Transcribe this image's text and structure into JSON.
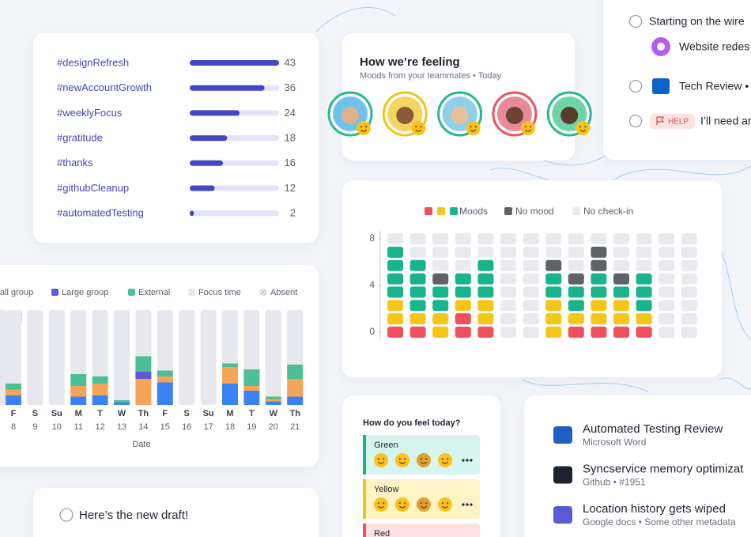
{
  "hashtags": {
    "tags": [
      "#designRefresh",
      "#newAccountGrowth",
      "#weeklyFocus",
      "#gratitude",
      "#thanks",
      "#githubCleanup",
      "#automatedTesting"
    ],
    "counts": [
      43,
      36,
      24,
      18,
      16,
      12,
      2
    ]
  },
  "feeling": {
    "title": "How we’re feeling",
    "subtitle": "Moods from your teammates • Today"
  },
  "tasks": {
    "items": [
      "Starting on the wire",
      "Website redes",
      "Tech Review •",
      "I’ll need ar"
    ],
    "badge": "HELP"
  },
  "mood_chart": {
    "moods_label": "Moods",
    "mood_series": [
      {
        "color": "#f0505e",
        "values": [
          1,
          1,
          0,
          2,
          1,
          0,
          0,
          0,
          1,
          1,
          1,
          1,
          0,
          0
        ]
      },
      {
        "color": "#f5c518",
        "values": [
          2,
          1,
          2,
          1,
          2,
          0,
          0,
          3,
          1,
          2,
          2,
          1,
          0,
          0
        ]
      },
      {
        "color": "#19b48c",
        "values": [
          4,
          4,
          2,
          2,
          3,
          0,
          0,
          2,
          2,
          2,
          1,
          3,
          0,
          0
        ]
      }
    ],
    "no_mood": {
      "name": "No mood",
      "color": "#5f6368",
      "values": [
        0,
        0,
        1,
        0,
        0,
        0,
        0,
        1,
        1,
        2,
        1,
        0,
        0,
        0
      ]
    },
    "no_checkin": {
      "name": "No check-in",
      "color": "#e9eaee"
    },
    "ylim": [
      0,
      8
    ],
    "yticks": [
      0,
      4,
      8
    ]
  },
  "calendar": {
    "days": [
      "F",
      "S",
      "Su",
      "M",
      "T",
      "W",
      "Th",
      "F",
      "S",
      "Su",
      "M",
      "T",
      "W",
      "Th"
    ],
    "dates": [
      8,
      9,
      10,
      11,
      12,
      13,
      14,
      15,
      16,
      17,
      18,
      19,
      20,
      21
    ],
    "x_label": "Date",
    "series": [
      {
        "name": "all group",
        "color": "#3b82f6",
        "values": [
          0.8,
          0,
          0,
          0.7,
          0.8,
          0.2,
          0,
          1.9,
          0,
          0,
          1.8,
          1.2,
          0.3,
          0.7
        ]
      },
      {
        "color": "#f5a55a",
        "values": [
          0.5,
          0,
          0,
          0.9,
          1,
          0,
          2.2,
          0.5,
          0,
          0,
          1.4,
          0.4,
          0.2,
          1.5
        ]
      },
      {
        "name": "Large group",
        "color": "#5b5bd6",
        "values": [
          0,
          0,
          0,
          0,
          0,
          0,
          0.6,
          0,
          0,
          0,
          0,
          0,
          0,
          0
        ]
      },
      {
        "name": "External",
        "color": "#4cbf96",
        "values": [
          0.5,
          0,
          0,
          1,
          0.6,
          0.2,
          1.3,
          0.5,
          0,
          0,
          0.3,
          1.4,
          0.2,
          1.2
        ]
      }
    ],
    "focus_time": "Focus time",
    "absent": "Absent"
  },
  "feel_today": {
    "title": "How do you feel today?",
    "moods": [
      "Green",
      "Yellow",
      "Red"
    ]
  },
  "docs": [
    {
      "title": "Automated Testing Review",
      "subtitle": "Microsoft Word"
    },
    {
      "title": "Syncservice memory optimizat",
      "subtitle": "Github • #1951"
    },
    {
      "title": "Location history gets wiped",
      "subtitle": "Google docs • Some other metadata"
    }
  ],
  "draft": {
    "text": "Here’s the new draft!"
  }
}
